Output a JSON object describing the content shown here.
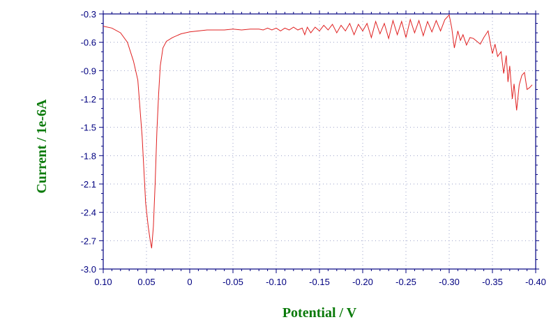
{
  "chart_data": {
    "type": "line",
    "title": "",
    "xlabel": "Potential / V",
    "ylabel": "Current / 1e-6A",
    "xlim": [
      0.1,
      -0.4
    ],
    "ylim": [
      -3.0,
      -0.3
    ],
    "x_ticks": [
      "0.10",
      "0.05",
      "0",
      "-0.05",
      "-0.10",
      "-0.15",
      "-0.20",
      "-0.25",
      "-0.30",
      "-0.35",
      "-0.40"
    ],
    "y_ticks": [
      "-0.3",
      "-0.6",
      "-0.9",
      "-1.2",
      "-1.5",
      "-1.8",
      "-2.1",
      "-2.4",
      "-2.7",
      "-3.0"
    ],
    "grid": "dotted",
    "colors": {
      "axes": "#000080",
      "line": "#e02020",
      "labels": "#0a7a0a",
      "grid": "#9aa0c8"
    },
    "series": [
      {
        "x": [
          0.1,
          0.09,
          0.08,
          0.072,
          0.065,
          0.06,
          0.055,
          0.051,
          0.048,
          0.046,
          0.044,
          0.042,
          0.04,
          0.038,
          0.036,
          0.034,
          0.031,
          0.027,
          0.02,
          0.01,
          0.0,
          -0.01,
          -0.02,
          -0.03,
          -0.04,
          -0.05,
          -0.06,
          -0.07,
          -0.08,
          -0.085,
          -0.09,
          -0.095,
          -0.1,
          -0.105,
          -0.11,
          -0.115,
          -0.12,
          -0.125,
          -0.13,
          -0.133,
          -0.136,
          -0.14,
          -0.145,
          -0.15,
          -0.155,
          -0.16,
          -0.165,
          -0.17,
          -0.175,
          -0.18,
          -0.185,
          -0.19,
          -0.195,
          -0.2,
          -0.205,
          -0.21,
          -0.215,
          -0.22,
          -0.225,
          -0.23,
          -0.235,
          -0.24,
          -0.245,
          -0.25,
          -0.255,
          -0.26,
          -0.265,
          -0.27,
          -0.275,
          -0.28,
          -0.285,
          -0.29,
          -0.295,
          -0.3,
          -0.303,
          -0.306,
          -0.31,
          -0.313,
          -0.316,
          -0.32,
          -0.324,
          -0.328,
          -0.332,
          -0.336,
          -0.34,
          -0.345,
          -0.348,
          -0.35,
          -0.353,
          -0.356,
          -0.36,
          -0.363,
          -0.366,
          -0.368,
          -0.37,
          -0.373,
          -0.375,
          -0.378,
          -0.381,
          -0.384,
          -0.387,
          -0.39,
          -0.393,
          -0.396
        ],
        "y": [
          -0.43,
          -0.45,
          -0.5,
          -0.6,
          -0.8,
          -1.0,
          -1.6,
          -2.3,
          -2.55,
          -2.68,
          -2.78,
          -2.55,
          -2.1,
          -1.55,
          -1.15,
          -0.85,
          -0.66,
          -0.59,
          -0.55,
          -0.51,
          -0.49,
          -0.48,
          -0.47,
          -0.47,
          -0.47,
          -0.46,
          -0.47,
          -0.46,
          -0.46,
          -0.47,
          -0.45,
          -0.47,
          -0.45,
          -0.48,
          -0.45,
          -0.47,
          -0.44,
          -0.47,
          -0.45,
          -0.52,
          -0.44,
          -0.5,
          -0.44,
          -0.48,
          -0.42,
          -0.47,
          -0.41,
          -0.5,
          -0.42,
          -0.48,
          -0.4,
          -0.52,
          -0.41,
          -0.48,
          -0.4,
          -0.55,
          -0.38,
          -0.51,
          -0.4,
          -0.56,
          -0.37,
          -0.52,
          -0.38,
          -0.55,
          -0.36,
          -0.5,
          -0.37,
          -0.53,
          -0.38,
          -0.49,
          -0.37,
          -0.48,
          -0.36,
          -0.31,
          -0.45,
          -0.66,
          -0.48,
          -0.58,
          -0.52,
          -0.63,
          -0.55,
          -0.56,
          -0.59,
          -0.62,
          -0.55,
          -0.48,
          -0.63,
          -0.72,
          -0.62,
          -0.75,
          -0.7,
          -0.93,
          -0.74,
          -1.02,
          -0.85,
          -1.2,
          -1.04,
          -1.32,
          -1.05,
          -0.95,
          -0.92,
          -1.1,
          -1.08,
          -1.05
        ]
      }
    ]
  }
}
